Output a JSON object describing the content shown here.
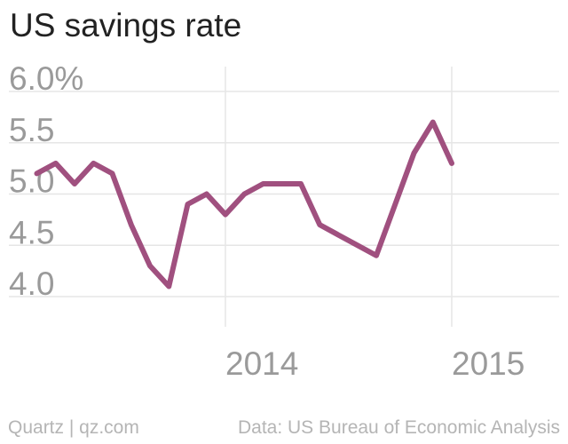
{
  "chart_data": {
    "type": "line",
    "title": "US savings rate",
    "xlabel": "",
    "ylabel": "",
    "ylim": [
      3.7,
      6.2
    ],
    "y_ticks": [
      4.0,
      4.5,
      5.0,
      5.5,
      6.0
    ],
    "y_tick_labels": [
      "4.0",
      "4.5",
      "5.0",
      "5.5",
      "6.0%"
    ],
    "x_ticks": [
      "2014-01",
      "2015-01"
    ],
    "x_tick_labels": [
      "2014",
      "2015"
    ],
    "grid": true,
    "series": [
      {
        "color": "#a0507f",
        "x": [
          "2013-03",
          "2013-04",
          "2013-05",
          "2013-06",
          "2013-07",
          "2013-08",
          "2013-09",
          "2013-10",
          "2013-11",
          "2013-12",
          "2014-01",
          "2014-02",
          "2014-03",
          "2014-04",
          "2014-05",
          "2014-06",
          "2014-07",
          "2014-08",
          "2014-09",
          "2014-10",
          "2014-11",
          "2014-12",
          "2015-01",
          "2015-02",
          "2015-03",
          "2015-04"
        ],
        "values": [
          5.2,
          5.3,
          5.1,
          5.3,
          5.2,
          4.7,
          4.3,
          4.1,
          4.9,
          5.0,
          4.8,
          5.0,
          5.1,
          5.1,
          5.1,
          4.7,
          4.6,
          4.5,
          4.4,
          4.9,
          5.4,
          5.7,
          5.3,
          null,
          null,
          null
        ]
      }
    ]
  },
  "footer": {
    "source_left": "Quartz | qz.com",
    "source_right": "Data: US Bureau of Economic Analysis"
  }
}
